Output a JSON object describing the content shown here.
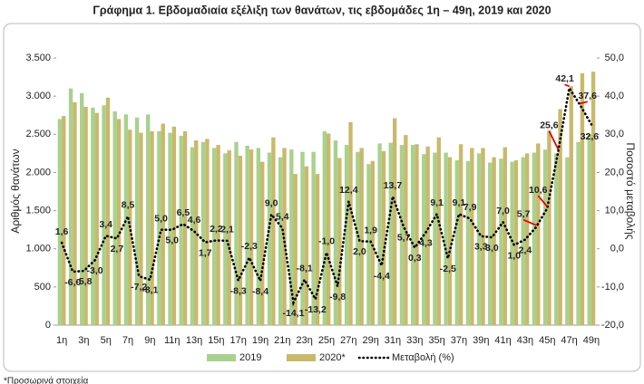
{
  "chart_data": {
    "type": "bar",
    "title": "Γράφημα 1.  Εβδομαδιαία εξέλιξη των θανάτων, τις εβδομάδες 1η – 49η, 2019 και 2020",
    "y_label": "Αριθμός θανάτων",
    "y2_label": "Ποσοστό μεταβολής",
    "footnote": "*Προσωρινά στοιχεία",
    "categories": [
      "1η",
      null,
      "3η",
      null,
      "5η",
      null,
      "7η",
      null,
      "9η",
      null,
      "11η",
      null,
      "13η",
      null,
      "15η",
      null,
      "17η",
      null,
      "19η",
      null,
      "21η",
      null,
      "23η",
      null,
      "25η",
      null,
      "27η",
      null,
      "29η",
      null,
      "31η",
      null,
      "33η",
      null,
      "35η",
      null,
      "37η",
      null,
      "39η",
      null,
      "41η",
      null,
      "43η",
      null,
      "45η",
      null,
      "47η",
      null,
      "49η"
    ],
    "series": [
      {
        "name": "2019",
        "color": "#a9d18e",
        "values": [
          2700,
          3100,
          3040,
          2850,
          2880,
          2800,
          2760,
          2720,
          2760,
          2540,
          2520,
          2480,
          2330,
          2400,
          2320,
          2250,
          2400,
          2350,
          2320,
          2260,
          2200,
          2300,
          2270,
          2270,
          2540,
          2420,
          2360,
          2270,
          2110,
          2380,
          2390,
          2360,
          2360,
          2240,
          2260,
          2260,
          2160,
          2150,
          2250,
          2130,
          2180,
          2140,
          2200,
          2260,
          2300,
          2250,
          2200,
          2400,
          2500
        ]
      },
      {
        "name": "2020*",
        "color": "#c9b96b",
        "values": [
          2740,
          2920,
          2860,
          2780,
          2980,
          2700,
          2560,
          2520,
          2540,
          2640,
          2600,
          2540,
          2420,
          2440,
          2360,
          2290,
          2220,
          2300,
          2140,
          2460,
          2320,
          1980,
          2080,
          1980,
          2510,
          2190,
          2660,
          2320,
          2150,
          2280,
          2710,
          2490,
          2370,
          2340,
          2460,
          2200,
          2370,
          2320,
          2320,
          2200,
          2330,
          2160,
          2250,
          2380,
          2550,
          2830,
          3130,
          3300,
          3320
        ]
      },
      {
        "name": "Μεταβολή (%)",
        "color": "#000000",
        "type": "line",
        "axis": "y2",
        "values": [
          1.6,
          -6.0,
          -5.8,
          -3.0,
          3.4,
          2.7,
          8.5,
          -7.2,
          -8.1,
          5.0,
          5.0,
          6.5,
          4.6,
          1.7,
          2.2,
          2.1,
          -8.3,
          -2.3,
          -8.4,
          9.0,
          5.4,
          -14.1,
          -8.1,
          -13.2,
          -1.0,
          -9.8,
          12.4,
          2.0,
          1.9,
          -4.4,
          13.7,
          5.7,
          0.3,
          4.3,
          9.1,
          -2.5,
          9.1,
          7.9,
          3.3,
          3.0,
          7.0,
          1.0,
          2.4,
          5.7,
          10.6,
          25.6,
          42.1,
          37.6,
          32.6
        ],
        "value_labels": [
          "1,6",
          "-6,0",
          "-5,8",
          "-3,0",
          "3,4",
          "2,7",
          "8,5",
          "-7,2",
          "-8,1",
          "5,0",
          "5,0",
          "6,5",
          "4,6",
          "1,7",
          "2,2",
          "2,1",
          "-8,3",
          "-2,3",
          "-8,4",
          "9,0",
          "5,4",
          "-14,1",
          "-8,1",
          "-13,2",
          "-1,0",
          "-9,8",
          "12,4",
          "2,0",
          "1,9",
          "-4,4",
          "13,7",
          "5,7",
          "0,3",
          "4,3",
          "9,1",
          "-2,5",
          "9,1",
          "7,9",
          "3,3",
          "3,0",
          "7,0",
          "1,0",
          "2,4",
          "5,7",
          "10,6",
          "25,6",
          "42,1",
          "37,6",
          "32,6"
        ]
      }
    ],
    "ylim": [
      0,
      3500
    ],
    "yticks": [
      0,
      500,
      {
        "value": 1000,
        "label": "1.000"
      },
      {
        "value": 1500,
        "label": "1.500"
      },
      {
        "value": 2000,
        "label": "2.000"
      },
      {
        "value": 2500,
        "label": "2.500"
      },
      {
        "value": 3000,
        "label": "3.000"
      },
      {
        "value": 3500,
        "label": "3.500"
      }
    ],
    "y2lim": [
      -20,
      50
    ],
    "y2ticks": [
      {
        "value": -20,
        "label": "-20,0"
      },
      {
        "value": -10,
        "label": "-10,0"
      },
      {
        "value": 0,
        "label": "0,0"
      },
      {
        "value": 10,
        "label": "10,0"
      },
      {
        "value": 20,
        "label": "20,0"
      },
      {
        "value": 30,
        "label": "30,0"
      },
      {
        "value": 40,
        "label": "40,0"
      },
      {
        "value": 50,
        "label": "50,0"
      }
    ],
    "grid": false,
    "legend": "bottom"
  }
}
